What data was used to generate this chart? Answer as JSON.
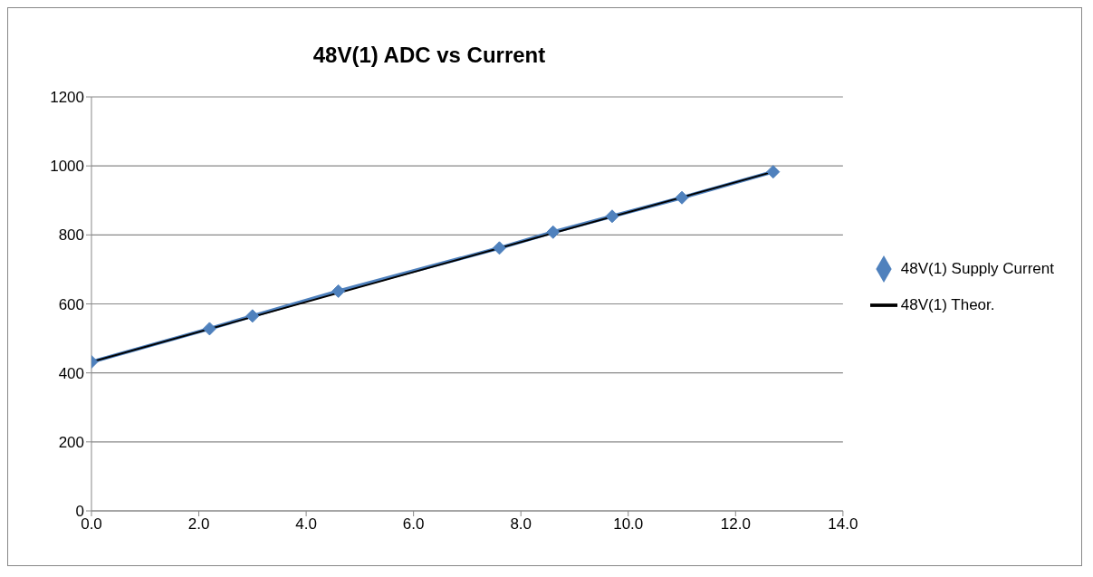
{
  "chart_data": {
    "type": "line",
    "title": "48V(1) ADC vs Current",
    "series": [
      {
        "name": "48V(1) Supply Current",
        "color": "#4f81bd",
        "marker": "diamond",
        "x": [
          0.0,
          2.2,
          3.0,
          4.6,
          7.6,
          8.6,
          9.7,
          11.0,
          12.7
        ],
        "values": [
          432,
          528,
          565,
          637,
          762,
          808,
          854,
          908,
          983
        ]
      },
      {
        "name": "48V(1) Theor.",
        "color": "#000000",
        "marker": "none",
        "x": [
          0.0,
          12.7
        ],
        "values": [
          432,
          983
        ]
      }
    ],
    "xlim": [
      0,
      14
    ],
    "xticks": [
      {
        "value": 0,
        "label": "0.0"
      },
      {
        "value": 2,
        "label": "2.0"
      },
      {
        "value": 4,
        "label": "4.0"
      },
      {
        "value": 6,
        "label": "6.0"
      },
      {
        "value": 8,
        "label": "8.0"
      },
      {
        "value": 10,
        "label": "10.0"
      },
      {
        "value": 12,
        "label": "12.0"
      },
      {
        "value": 14,
        "label": "14.0"
      }
    ],
    "ylim": [
      0,
      1200
    ],
    "yticks": [
      0,
      200,
      400,
      600,
      800,
      1000,
      1200
    ],
    "grid": "y",
    "legend": "right",
    "line_style": "solid"
  }
}
